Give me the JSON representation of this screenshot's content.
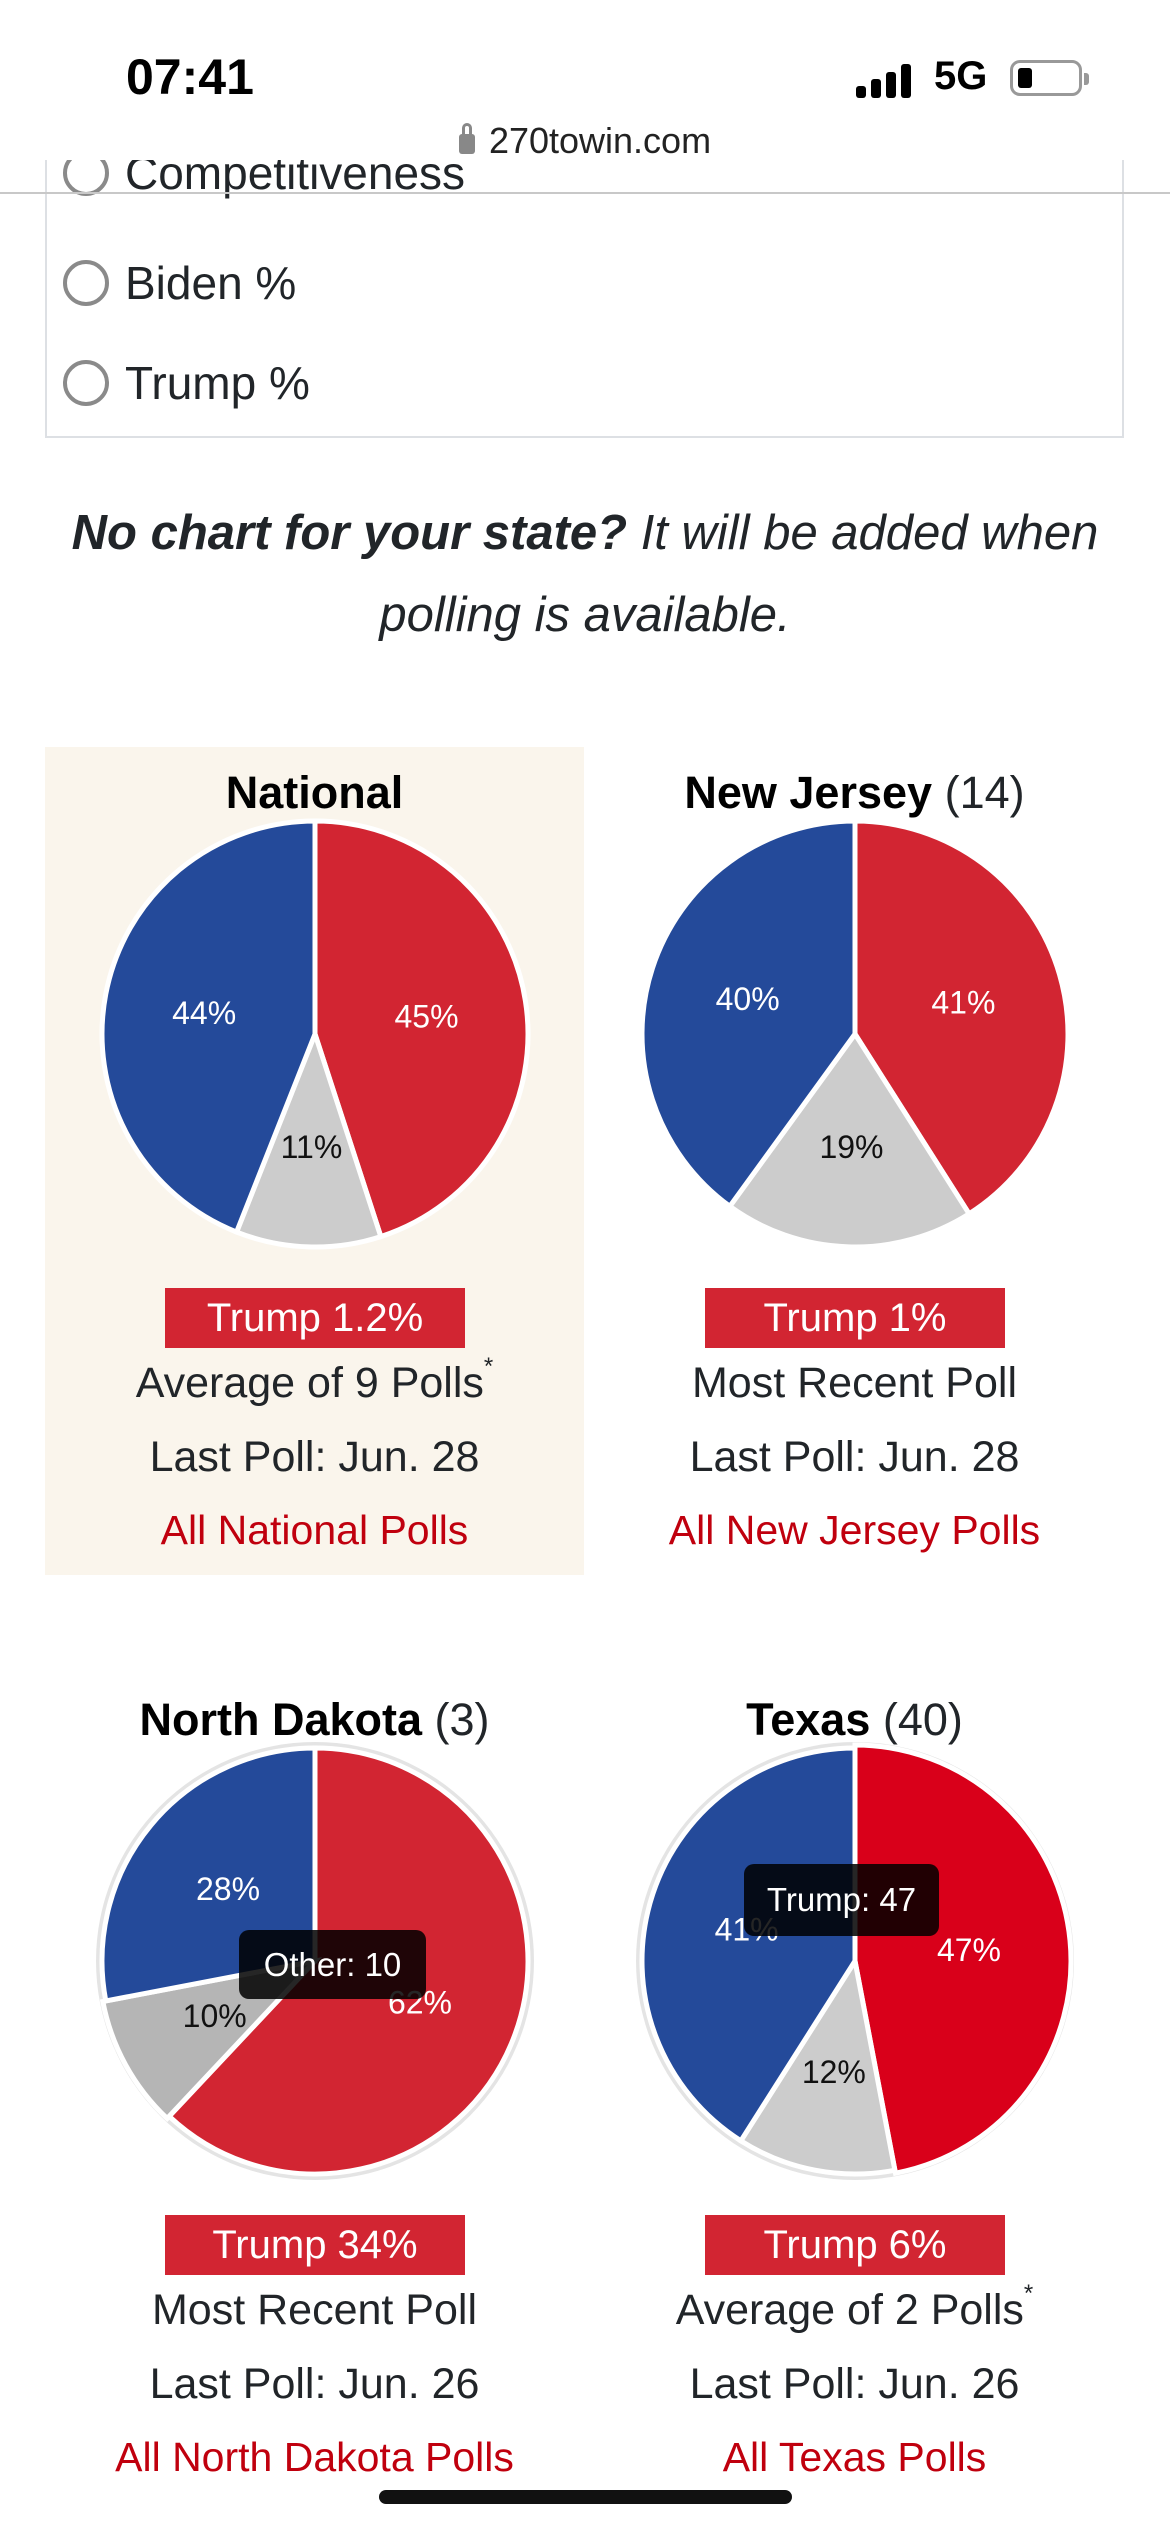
{
  "status": {
    "time": "07:41",
    "network": "5G"
  },
  "browser": {
    "url": "270towin.com"
  },
  "options": [
    "Competitiveness",
    "Biden %",
    "Trump %"
  ],
  "note": {
    "bold": "No chart for your state?",
    "rest": " It will be added when polling is available."
  },
  "colors": {
    "biden": "#244a9a",
    "trump": "#d22532",
    "trump_hover": "#d9001a",
    "other": "#cccccc",
    "other_hover": "#b5b5b5",
    "highlight_bg": "#faf5ec",
    "link": "#c0000e"
  },
  "cards": [
    {
      "name": "National",
      "ev": "",
      "banner": "Trump 1.2%",
      "line1": "Average of 9 Polls",
      "asterisk": "*",
      "line2": "Last Poll: Jun. 28",
      "link": "All National Polls"
    },
    {
      "name": "New Jersey",
      "ev": "(14)",
      "banner": "Trump 1%",
      "line1": "Most Recent Poll",
      "asterisk": "",
      "line2": "Last Poll: Jun. 28",
      "link": "All New Jersey Polls"
    },
    {
      "name": "North Dakota",
      "ev": "(3)",
      "banner": "Trump 34%",
      "line1": "Most Recent Poll",
      "asterisk": "",
      "line2": "Last Poll: Jun. 26",
      "link": "All North Dakota Polls",
      "tooltip": "Other: 10"
    },
    {
      "name": "Texas",
      "ev": "(40)",
      "banner": "Trump 6%",
      "line1": "Average of 2 Polls",
      "asterisk": "*",
      "line2": "Last Poll: Jun. 26",
      "link": "All Texas Polls",
      "tooltip": "Trump: 47"
    }
  ],
  "chart_data": [
    {
      "type": "pie",
      "title": "National",
      "slices": [
        {
          "label": "Trump",
          "value": 45
        },
        {
          "label": "Other",
          "value": 11
        },
        {
          "label": "Biden",
          "value": 44
        }
      ]
    },
    {
      "type": "pie",
      "title": "New Jersey",
      "slices": [
        {
          "label": "Trump",
          "value": 41
        },
        {
          "label": "Other",
          "value": 19
        },
        {
          "label": "Biden",
          "value": 40
        }
      ]
    },
    {
      "type": "pie",
      "title": "North Dakota",
      "hovered": "Other",
      "slices": [
        {
          "label": "Trump",
          "value": 62
        },
        {
          "label": "Other",
          "value": 10
        },
        {
          "label": "Biden",
          "value": 28
        }
      ]
    },
    {
      "type": "pie",
      "title": "Texas",
      "hovered": "Trump",
      "slices": [
        {
          "label": "Trump",
          "value": 47
        },
        {
          "label": "Other",
          "value": 12
        },
        {
          "label": "Biden",
          "value": 41
        }
      ]
    }
  ]
}
